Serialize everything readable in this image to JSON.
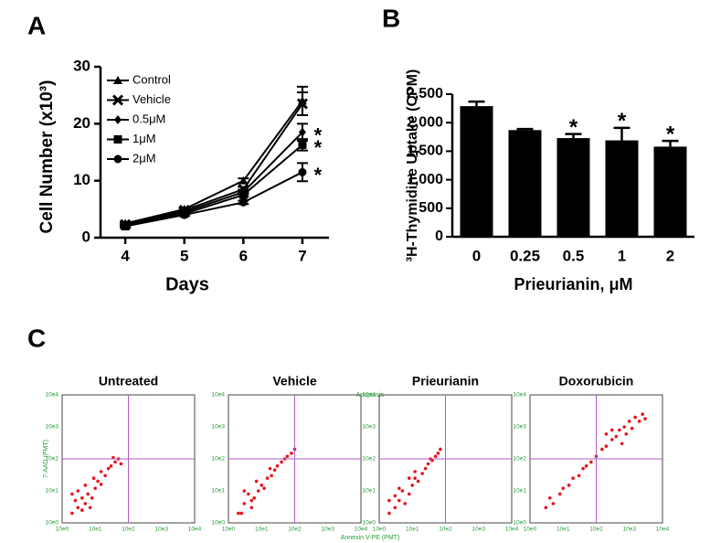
{
  "chart_data": [
    {
      "type": "line",
      "title": "A",
      "xlabel": "Days",
      "ylabel": "Cell Number (x10³)",
      "x": [
        4,
        5,
        6,
        7
      ],
      "xlim": [
        3.58,
        7.45
      ],
      "xticks": [
        4,
        5,
        6,
        7
      ],
      "ylim": [
        0,
        30
      ],
      "yticks": [
        0,
        10,
        20,
        30
      ],
      "series": [
        {
          "name": "Control",
          "marker": "triangle",
          "color": "#000000",
          "values": [
            2.5,
            5,
            10,
            24
          ],
          "errors": [
            0.3,
            0.3,
            0.4,
            2.5
          ],
          "annotations": [
            null,
            null,
            null,
            null
          ]
        },
        {
          "name": "Vehicle",
          "marker": "cross",
          "color": "#000000",
          "values": [
            2.3,
            4.8,
            8.5,
            23.5
          ],
          "errors": [
            0.3,
            0.3,
            0.4,
            2
          ],
          "annotations": [
            null,
            null,
            null,
            null
          ]
        },
        {
          "name": "0.5μM",
          "marker": "diamond",
          "color": "#000000",
          "values": [
            2.2,
            4.5,
            8,
            18.5
          ],
          "errors": [
            0.2,
            0.3,
            0.4,
            1.5
          ],
          "annotations": [
            null,
            null,
            null,
            "*"
          ]
        },
        {
          "name": "1μM",
          "marker": "square",
          "color": "#000000",
          "values": [
            2,
            4.2,
            7.5,
            16.3
          ],
          "errors": [
            0.2,
            0.3,
            0.3,
            1
          ],
          "annotations": [
            null,
            null,
            null,
            "*"
          ]
        },
        {
          "name": "2μM",
          "marker": "circle",
          "color": "#000000",
          "values": [
            2,
            4,
            6.2,
            11.5
          ],
          "errors": [
            0.2,
            0.2,
            0.3,
            1.6
          ],
          "annotations": [
            null,
            null,
            null,
            "*"
          ]
        }
      ]
    },
    {
      "type": "bar",
      "title": "B",
      "xlabel": "Prieurianin, μM",
      "ylabel": "³H-Thymidine Uptake (CPM)",
      "categories": [
        "0",
        "0.25",
        "0.5",
        "1",
        "2"
      ],
      "values": [
        2290,
        1870,
        1730,
        1690,
        1580
      ],
      "errors": [
        80,
        20,
        70,
        220,
        100
      ],
      "annotations": [
        null,
        null,
        "*",
        "*",
        "*"
      ],
      "color": "#000000",
      "ylim": [
        0,
        2500
      ],
      "yticks": [
        0,
        500,
        {
          "value": 1000,
          "label": "1,000"
        },
        {
          "value": 1500,
          "label": "1,500"
        },
        {
          "value": 2000,
          "label": "2,000"
        },
        {
          "value": 2500,
          "label": "2,500"
        }
      ]
    },
    {
      "type": "scatter",
      "title": "Untreated",
      "ylabel": "7-AAD (PMT)",
      "log_x": true,
      "log_y": true,
      "color": "#e8141b",
      "quadrant_color": "#b05cc0",
      "xlim": [
        1,
        10000
      ],
      "ylim": [
        1,
        10000
      ],
      "xticks": [
        {
          "value": 1,
          "label": "10e0"
        },
        {
          "value": 10,
          "label": "10e1"
        },
        {
          "value": 100,
          "label": "10e2"
        },
        {
          "value": 1000,
          "label": "10e3"
        },
        {
          "value": 10000,
          "label": "10e4"
        }
      ],
      "yticks": [
        {
          "value": 1,
          "label": "10e0"
        },
        {
          "value": 10,
          "label": "10e1"
        },
        {
          "value": 100,
          "label": "10e2"
        },
        {
          "value": 1000,
          "label": "10e3"
        },
        {
          "value": 10000,
          "label": "10e4"
        }
      ],
      "quadrant_x": 100,
      "quadrant_y": 100,
      "x": [
        2,
        3,
        2.5,
        4,
        5,
        6,
        3,
        8,
        10,
        12,
        15,
        5,
        20,
        25,
        30,
        40,
        50,
        35,
        60,
        2,
        7,
        4,
        9,
        15
      ],
      "y": [
        2,
        3,
        5,
        2.5,
        4,
        8,
        10,
        6,
        12,
        20,
        16,
        15,
        30,
        50,
        60,
        80,
        100,
        110,
        70,
        8,
        3,
        6,
        25,
        40
      ]
    },
    {
      "type": "scatter",
      "title": "Vehicle",
      "log_x": true,
      "log_y": true,
      "color": "#e8141b",
      "quadrant_color": "#b05cc0",
      "xlim": [
        1,
        10000
      ],
      "ylim": [
        1,
        10000
      ],
      "xticks": [
        {
          "value": 1,
          "label": "10e0"
        },
        {
          "value": 10,
          "label": "10e1"
        },
        {
          "value": 100,
          "label": "10e2"
        },
        {
          "value": 1000,
          "label": "10e3"
        },
        {
          "value": 10000,
          "label": "10e4"
        }
      ],
      "yticks": [
        {
          "value": 1,
          "label": "10e0"
        },
        {
          "value": 10,
          "label": "10e1"
        },
        {
          "value": 100,
          "label": "10e2"
        },
        {
          "value": 1000,
          "label": "10e3"
        },
        {
          "value": 10000,
          "label": "10e4"
        }
      ],
      "quadrant_x": 100,
      "quadrant_y": 100,
      "x": [
        2,
        3,
        2.5,
        5,
        4,
        6,
        8,
        10,
        12,
        15,
        20,
        25,
        30,
        40,
        50,
        60,
        80,
        100,
        3,
        7,
        5,
        18
      ],
      "y": [
        2,
        4,
        2,
        3,
        8,
        6,
        10,
        15,
        12,
        25,
        30,
        45,
        60,
        80,
        100,
        120,
        150,
        200,
        10,
        20,
        5,
        50
      ]
    },
    {
      "type": "scatter",
      "title": "Prieurianin",
      "log_x": true,
      "log_y": true,
      "color": "#e8141b",
      "quadrant_color": "#b05cc0",
      "xlim": [
        1,
        10000
      ],
      "ylim": [
        1,
        10000
      ],
      "xticks": [
        {
          "value": 1,
          "label": "10e0"
        },
        {
          "value": 10,
          "label": "10e1"
        },
        {
          "value": 100,
          "label": "10e2"
        },
        {
          "value": 1000,
          "label": "10e3"
        },
        {
          "value": 10000,
          "label": "10e4"
        }
      ],
      "yticks": [
        {
          "value": 1,
          "label": "10e0"
        },
        {
          "value": 10,
          "label": "10e1"
        },
        {
          "value": 100,
          "label": "10e2"
        },
        {
          "value": 1000,
          "label": "10e3"
        },
        {
          "value": 10000,
          "label": "10e4"
        }
      ],
      "quadrant_x": 100,
      "quadrant_y": 100,
      "x": [
        2,
        3,
        4,
        2,
        6,
        5,
        8,
        10,
        12,
        15,
        20,
        25,
        30,
        40,
        50,
        60,
        70,
        4,
        8,
        3,
        12,
        35
      ],
      "y": [
        2,
        3,
        5,
        5,
        4,
        10,
        8,
        15,
        25,
        20,
        35,
        50,
        70,
        90,
        120,
        150,
        200,
        12,
        25,
        7,
        40,
        100
      ]
    },
    {
      "type": "scatter",
      "title": "Doxorubicin",
      "log_x": true,
      "log_y": true,
      "color": "#e8141b",
      "quadrant_color": "#b05cc0",
      "xlim": [
        1,
        10000
      ],
      "ylim": [
        1,
        10000
      ],
      "xticks": [
        {
          "value": 1,
          "label": "10e0"
        },
        {
          "value": 10,
          "label": "10e1"
        },
        {
          "value": 100,
          "label": "10e2"
        },
        {
          "value": 1000,
          "label": "10e3"
        },
        {
          "value": 10000,
          "label": "10e4"
        }
      ],
      "yticks": [
        {
          "value": 1,
          "label": "10e0"
        },
        {
          "value": 10,
          "label": "10e1"
        },
        {
          "value": 100,
          "label": "10e2"
        },
        {
          "value": 1000,
          "label": "10e3"
        },
        {
          "value": 10000,
          "label": "10e4"
        }
      ],
      "quadrant_x": 100,
      "quadrant_y": 100,
      "x": [
        3,
        5,
        4,
        8,
        10,
        15,
        20,
        30,
        40,
        50,
        70,
        100,
        150,
        200,
        300,
        400,
        500,
        700,
        1000,
        1500,
        2000,
        800,
        300,
        200,
        600,
        2500,
        1200,
        3000
      ],
      "y": [
        3,
        4,
        6,
        8,
        12,
        15,
        25,
        30,
        50,
        60,
        80,
        120,
        200,
        250,
        400,
        500,
        800,
        1000,
        1500,
        2000,
        1500,
        600,
        800,
        600,
        300,
        2500,
        900,
        1800
      ]
    }
  ],
  "panel_c": {
    "label": "C",
    "header": "Apoptosis",
    "xlabel": "Annexin V-PE (PMT)"
  }
}
